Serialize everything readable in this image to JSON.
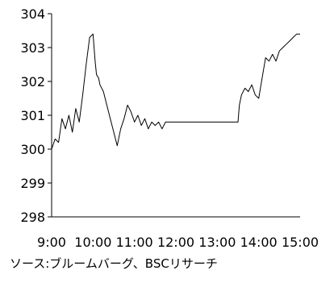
{
  "chart_data": {
    "type": "line",
    "title": "",
    "xlabel": "",
    "ylabel": "",
    "ylim": [
      298,
      304
    ],
    "yticks": [
      "298",
      "299",
      "300",
      "301",
      "302",
      "303",
      "304"
    ],
    "xticks": [
      "9:00",
      "10:00",
      "11:00",
      "12:00",
      "13:00",
      "14:00",
      "15:00"
    ],
    "grid": false,
    "legend": "none",
    "line_color": "#000000",
    "series": [
      {
        "x": [
          "9:00",
          "9:05",
          "9:10",
          "9:15",
          "9:20",
          "9:25",
          "9:30",
          "9:35",
          "9:40",
          "9:45",
          "9:50",
          "9:55",
          "10:00",
          "10:03",
          "10:05",
          "10:08",
          "10:10",
          "10:15",
          "10:20",
          "10:25",
          "10:30",
          "10:35",
          "10:40",
          "10:45",
          "10:50",
          "10:55",
          "11:00",
          "11:05",
          "11:10",
          "11:15",
          "11:20",
          "11:25",
          "11:30",
          "11:35",
          "11:40",
          "11:45",
          "11:50",
          "11:55",
          "12:00",
          "12:30",
          "13:00",
          "13:30",
          "13:32",
          "13:35",
          "13:40",
          "13:45",
          "13:50",
          "13:55",
          "14:00",
          "14:05",
          "14:10",
          "14:15",
          "14:20",
          "14:25",
          "14:30",
          "14:35",
          "14:40",
          "14:45",
          "14:50",
          "14:55",
          "15:00"
        ],
        "values": [
          300.0,
          300.3,
          300.2,
          300.9,
          300.6,
          301.0,
          300.5,
          301.2,
          300.8,
          301.6,
          302.5,
          303.3,
          303.4,
          302.6,
          302.2,
          302.1,
          301.9,
          301.7,
          301.3,
          300.9,
          300.5,
          300.1,
          300.6,
          300.9,
          301.3,
          301.1,
          300.8,
          301.0,
          300.7,
          300.9,
          300.6,
          300.8,
          300.7,
          300.8,
          300.6,
          300.8,
          300.8,
          300.8,
          300.8,
          300.8,
          300.8,
          300.8,
          301.3,
          301.6,
          301.8,
          301.7,
          301.9,
          301.6,
          301.5,
          302.1,
          302.7,
          302.6,
          302.8,
          302.6,
          302.9,
          303.0,
          303.1,
          303.2,
          303.3,
          303.4,
          303.4
        ]
      }
    ]
  },
  "source": "ソース:ブルームバーグ、BSCリサーチ"
}
